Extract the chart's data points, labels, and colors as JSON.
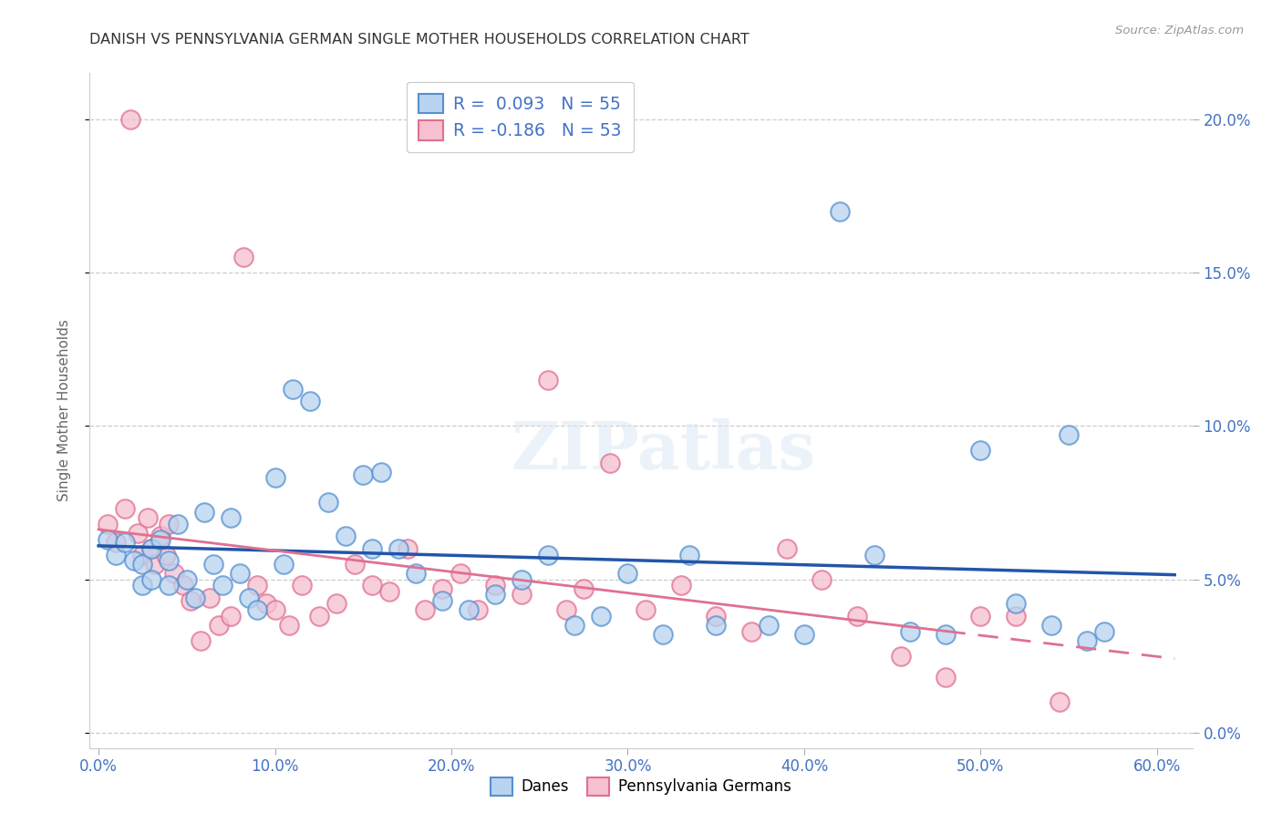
{
  "title": "DANISH VS PENNSYLVANIA GERMAN SINGLE MOTHER HOUSEHOLDS CORRELATION CHART",
  "source": "Source: ZipAtlas.com",
  "ylabel": "Single Mother Households",
  "xlabel_vals": [
    0.0,
    0.1,
    0.2,
    0.3,
    0.4,
    0.5,
    0.6
  ],
  "ylabel_vals": [
    0.0,
    0.05,
    0.1,
    0.15,
    0.2
  ],
  "xlim": [
    -0.005,
    0.62
  ],
  "ylim": [
    -0.005,
    0.215
  ],
  "blue_scatter_face": "#b8d4f0",
  "blue_scatter_edge": "#5590d0",
  "pink_scatter_face": "#f5c0cf",
  "pink_scatter_edge": "#e07090",
  "blue_line_color": "#2255aa",
  "pink_line_color": "#e07090",
  "danes_x": [
    0.005,
    0.01,
    0.015,
    0.02,
    0.025,
    0.025,
    0.03,
    0.03,
    0.035,
    0.04,
    0.04,
    0.045,
    0.05,
    0.055,
    0.06,
    0.065,
    0.07,
    0.075,
    0.08,
    0.085,
    0.09,
    0.1,
    0.105,
    0.11,
    0.12,
    0.13,
    0.14,
    0.15,
    0.155,
    0.16,
    0.17,
    0.18,
    0.195,
    0.21,
    0.225,
    0.24,
    0.255,
    0.27,
    0.285,
    0.3,
    0.32,
    0.335,
    0.35,
    0.38,
    0.4,
    0.42,
    0.44,
    0.46,
    0.48,
    0.5,
    0.52,
    0.54,
    0.56,
    0.57,
    0.55
  ],
  "danes_y": [
    0.063,
    0.058,
    0.062,
    0.056,
    0.055,
    0.048,
    0.06,
    0.05,
    0.063,
    0.056,
    0.048,
    0.068,
    0.05,
    0.044,
    0.072,
    0.055,
    0.048,
    0.07,
    0.052,
    0.044,
    0.04,
    0.083,
    0.055,
    0.112,
    0.108,
    0.075,
    0.064,
    0.084,
    0.06,
    0.085,
    0.06,
    0.052,
    0.043,
    0.04,
    0.045,
    0.05,
    0.058,
    0.035,
    0.038,
    0.052,
    0.032,
    0.058,
    0.035,
    0.035,
    0.032,
    0.17,
    0.058,
    0.033,
    0.032,
    0.092,
    0.042,
    0.035,
    0.03,
    0.033,
    0.097
  ],
  "pagerman_x": [
    0.005,
    0.01,
    0.015,
    0.018,
    0.022,
    0.025,
    0.028,
    0.03,
    0.032,
    0.035,
    0.038,
    0.04,
    0.043,
    0.048,
    0.052,
    0.058,
    0.063,
    0.068,
    0.075,
    0.082,
    0.09,
    0.095,
    0.1,
    0.108,
    0.115,
    0.125,
    0.135,
    0.145,
    0.155,
    0.165,
    0.175,
    0.185,
    0.195,
    0.205,
    0.215,
    0.225,
    0.24,
    0.255,
    0.265,
    0.275,
    0.29,
    0.31,
    0.33,
    0.35,
    0.37,
    0.39,
    0.41,
    0.43,
    0.455,
    0.48,
    0.5,
    0.52,
    0.545
  ],
  "pagerman_y": [
    0.068,
    0.062,
    0.073,
    0.2,
    0.065,
    0.058,
    0.07,
    0.06,
    0.055,
    0.064,
    0.058,
    0.068,
    0.052,
    0.048,
    0.043,
    0.03,
    0.044,
    0.035,
    0.038,
    0.155,
    0.048,
    0.042,
    0.04,
    0.035,
    0.048,
    0.038,
    0.042,
    0.055,
    0.048,
    0.046,
    0.06,
    0.04,
    0.047,
    0.052,
    0.04,
    0.048,
    0.045,
    0.115,
    0.04,
    0.047,
    0.088,
    0.04,
    0.048,
    0.038,
    0.033,
    0.06,
    0.05,
    0.038,
    0.025,
    0.018,
    0.038,
    0.038,
    0.01
  ],
  "watermark_text": "ZIPatlas",
  "background_color": "#ffffff",
  "grid_color": "#cccccc"
}
